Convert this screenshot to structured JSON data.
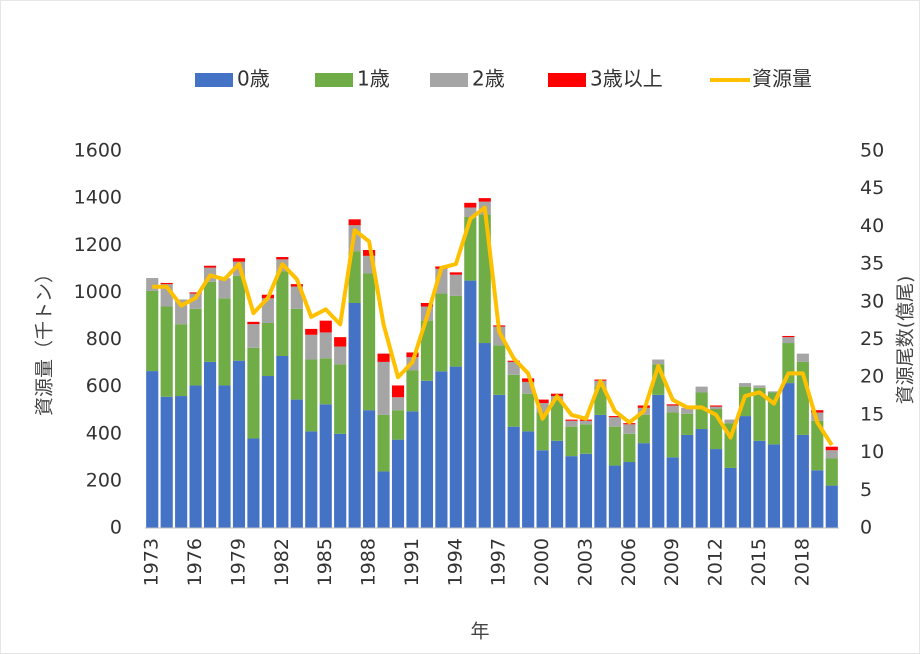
{
  "chart_data": {
    "type": "bar",
    "stacked": true,
    "categories": [
      "1973",
      null,
      null,
      "1976",
      null,
      null,
      "1979",
      null,
      null,
      "1982",
      null,
      null,
      "1985",
      null,
      null,
      "1988",
      null,
      null,
      "1991",
      null,
      null,
      "1994",
      null,
      null,
      "1997",
      null,
      null,
      "2000",
      null,
      null,
      "2003",
      null,
      null,
      "2006",
      null,
      null,
      "2009",
      null,
      null,
      "2012",
      null,
      null,
      "2015",
      null,
      null,
      "2018",
      null,
      null
    ],
    "series": [
      {
        "name": "0歳",
        "color": "#4472c4",
        "values": [
          666,
          557,
          560,
          605,
          705,
          605,
          710,
          380,
          645,
          730,
          545,
          410,
          525,
          400,
          955,
          500,
          240,
          375,
          495,
          625,
          665,
          685,
          1050,
          785,
          565,
          430,
          410,
          330,
          370,
          305,
          315,
          480,
          265,
          280,
          360,
          565,
          300,
          395,
          420,
          335,
          255,
          475,
          370,
          355,
          615,
          395,
          245,
          180
        ]
      },
      {
        "name": "1歳",
        "color": "#70ad47",
        "values": [
          340,
          383,
          305,
          325,
          340,
          370,
          360,
          385,
          225,
          360,
          385,
          305,
          195,
          295,
          220,
          580,
          240,
          125,
          175,
          255,
          330,
          300,
          270,
          545,
          210,
          220,
          160,
          160,
          175,
          125,
          125,
          120,
          165,
          120,
          120,
          130,
          190,
          90,
          155,
          170,
          190,
          125,
          225,
          220,
          170,
          310,
          210,
          115
        ]
      },
      {
        "name": "2歳",
        "color": "#a5a5a5",
        "values": [
          55,
          95,
          105,
          65,
          60,
          85,
          60,
          100,
          105,
          50,
          95,
          105,
          110,
          75,
          110,
          75,
          225,
          55,
          55,
          60,
          105,
          90,
          40,
          55,
          80,
          55,
          50,
          40,
          15,
          25,
          15,
          25,
          40,
          40,
          30,
          20,
          30,
          25,
          25,
          10,
          15,
          15,
          10,
          5,
          25,
          35,
          35,
          35
        ]
      },
      {
        "name": "3歳以上",
        "color": "#ff0000",
        "values": [
          0,
          5,
          0,
          5,
          8,
          0,
          15,
          10,
          15,
          10,
          10,
          25,
          50,
          40,
          25,
          25,
          35,
          50,
          20,
          15,
          10,
          10,
          20,
          15,
          5,
          5,
          15,
          15,
          10,
          5,
          5,
          5,
          5,
          5,
          10,
          0,
          5,
          0,
          0,
          5,
          0,
          0,
          0,
          0,
          5,
          0,
          10,
          15
        ]
      },
      {
        "name": "資源量",
        "type": "line",
        "axis": "y2",
        "color": "#ffc000",
        "values": [
          32,
          32,
          29.5,
          30.5,
          33.5,
          33,
          35,
          28.5,
          30.5,
          35,
          33,
          28,
          29,
          27,
          39.5,
          38,
          27,
          20,
          22,
          28,
          34.5,
          35,
          41,
          42.5,
          26,
          22.5,
          20.5,
          14.5,
          17.5,
          15,
          14.5,
          19.5,
          15.5,
          14,
          15.5,
          21.5,
          17,
          16,
          16,
          15,
          12,
          17.5,
          18,
          16.5,
          20.5,
          20.5,
          14,
          11
        ]
      }
    ],
    "ylim": [
      0,
      1600
    ],
    "yticks": [
      0,
      200,
      400,
      600,
      800,
      1000,
      1200,
      1400,
      1600
    ],
    "y2lim": [
      0,
      50
    ],
    "y2ticks": [
      0,
      5,
      10,
      15,
      20,
      25,
      30,
      35,
      40,
      45,
      50
    ],
    "ylabel": "資源量（千トン）",
    "y2label": "資源尾数(億尾)",
    "xlabel": "年",
    "legend": "top"
  }
}
